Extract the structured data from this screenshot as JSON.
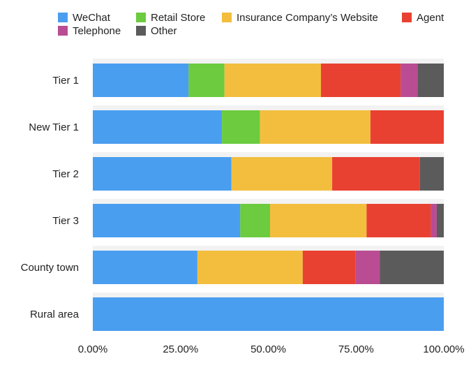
{
  "chart_data": {
    "type": "bar",
    "orientation": "horizontal",
    "stacked": true,
    "normalized": true,
    "title": "",
    "xlabel": "",
    "ylabel": "",
    "xlim": [
      0,
      1
    ],
    "x_tick_labels": [
      "0.00%",
      "25.00%",
      "50.00%",
      "75.00%",
      "100.00%"
    ],
    "grid": false,
    "legend_position": "top",
    "categories": [
      "Tier 1",
      "New Tier 1",
      "Tier 2",
      "Tier 3",
      "County town",
      "Rural area"
    ],
    "series": [
      {
        "name": "WeChat",
        "color": "#4A9EF0",
        "values": [
          0.273,
          0.368,
          0.395,
          0.42,
          0.298,
          1.0
        ]
      },
      {
        "name": "Retail Store",
        "color": "#6CCB3F",
        "values": [
          0.102,
          0.108,
          0.0,
          0.085,
          0.0,
          0.0
        ]
      },
      {
        "name": "Insurance Company’s Website",
        "color": "#F3BE3E",
        "values": [
          0.275,
          0.315,
          0.287,
          0.275,
          0.3,
          0.0
        ]
      },
      {
        "name": "Agent",
        "color": "#E94131",
        "values": [
          0.227,
          0.209,
          0.25,
          0.183,
          0.15,
          0.0
        ]
      },
      {
        "name": "Telephone",
        "color": "#B94C93",
        "values": [
          0.048,
          0.0,
          0.0,
          0.017,
          0.07,
          0.0
        ]
      },
      {
        "name": "Other",
        "color": "#5B5B5B",
        "values": [
          0.075,
          0.0,
          0.068,
          0.02,
          0.182,
          0.0
        ]
      }
    ]
  }
}
